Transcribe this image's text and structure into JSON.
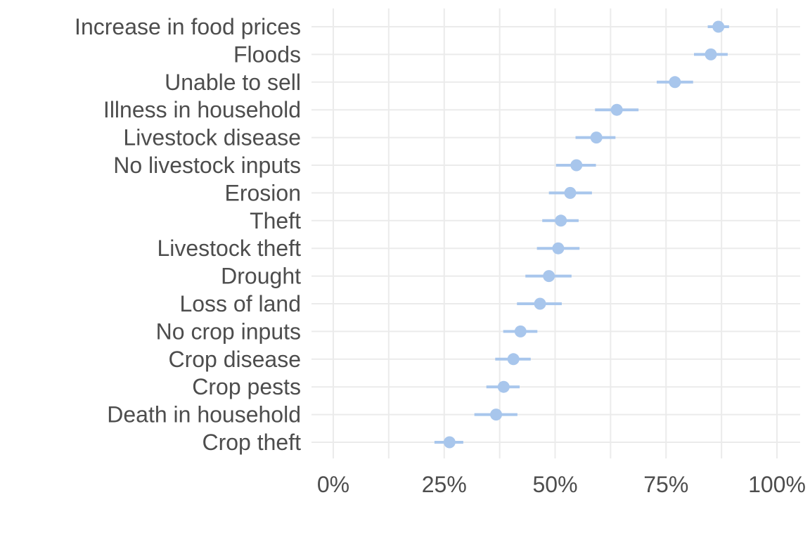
{
  "chart_data": {
    "type": "dot-errorbar",
    "title": "",
    "xlabel": "",
    "ylabel": "",
    "xlim": [
      0,
      100
    ],
    "x_ticks": [
      0,
      25,
      50,
      75,
      100
    ],
    "x_tick_labels": [
      "0%",
      "25%",
      "50%",
      "75%",
      "100%"
    ],
    "grid": true,
    "color": "#a8c6ec",
    "categories": [
      "Increase in food prices",
      "Floods",
      "Unable to sell",
      "Illness in household",
      "Livestock disease",
      "No livestock inputs",
      "Erosion",
      "Theft",
      "Livestock theft",
      "Drought",
      "Loss of land",
      "No crop inputs",
      "Crop disease",
      "Crop pests",
      "Death in household",
      "Crop theft"
    ],
    "values": [
      86.8,
      85.1,
      77.0,
      63.9,
      59.3,
      54.8,
      53.4,
      51.3,
      50.7,
      48.6,
      46.6,
      42.2,
      40.6,
      38.4,
      36.7,
      26.2
    ],
    "lower": [
      84.4,
      81.3,
      72.9,
      59.0,
      54.6,
      50.2,
      48.6,
      47.1,
      45.9,
      43.3,
      41.4,
      38.3,
      36.5,
      34.5,
      31.8,
      22.8
    ],
    "upper": [
      89.2,
      88.9,
      81.1,
      68.8,
      63.6,
      59.2,
      58.3,
      55.3,
      55.5,
      53.7,
      51.5,
      46.0,
      44.5,
      42.0,
      41.5,
      29.3
    ]
  }
}
